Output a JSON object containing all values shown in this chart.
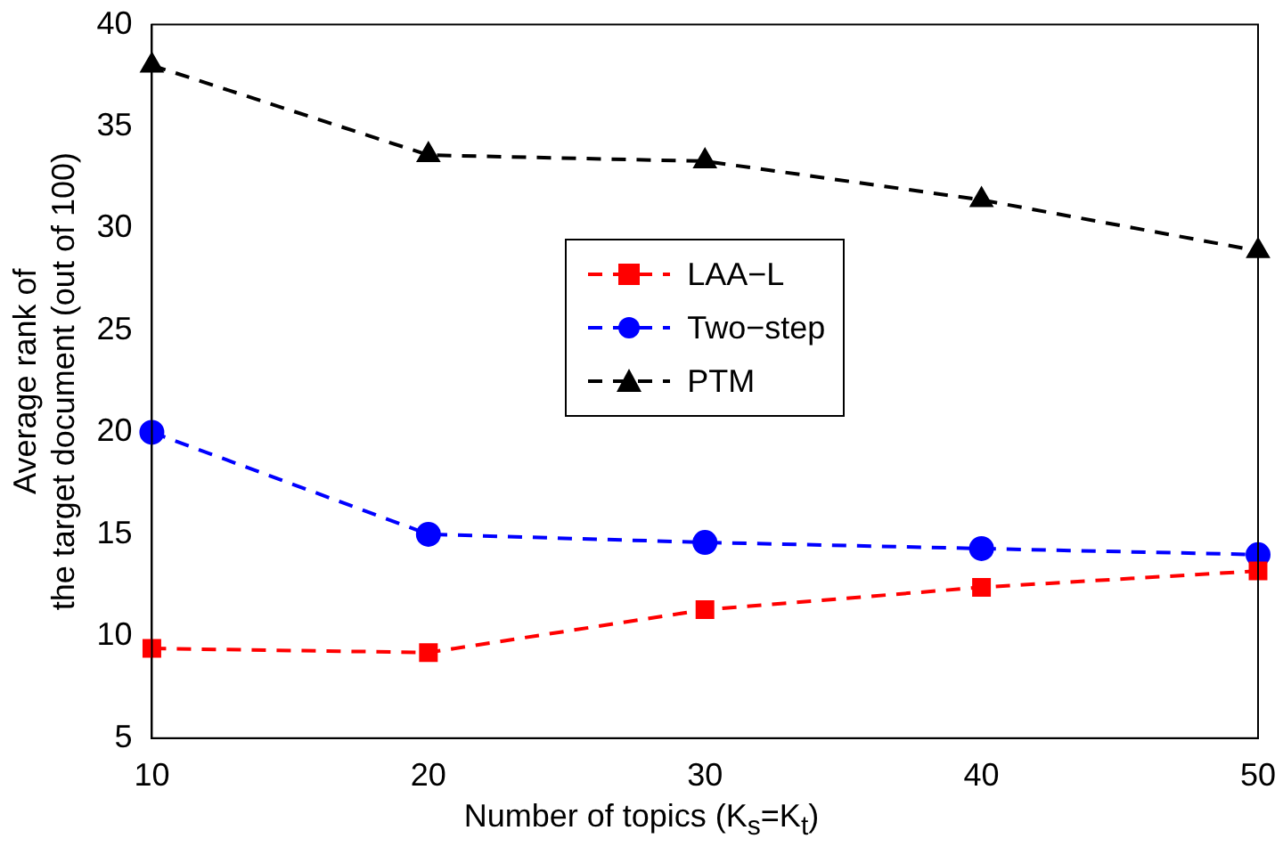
{
  "chart_data": {
    "type": "line",
    "xlabel": "Number of topics (K$_{s}$=K$_{t}$)",
    "ylabel": "Average rank of\nthe target document (out of 100)",
    "x": [
      10,
      20,
      30,
      40,
      50
    ],
    "xlim": [
      10,
      50
    ],
    "xticks": [
      10,
      20,
      30,
      40,
      50
    ],
    "ylim": [
      5,
      40
    ],
    "yticks": [
      5,
      10,
      15,
      20,
      25,
      30,
      35,
      40
    ],
    "grid": false,
    "legend": "center",
    "line_style": "dashed",
    "series": [
      {
        "name": "LAA−L",
        "color": "#ff0000",
        "marker": "square",
        "values": [
          9.4,
          9.2,
          11.3,
          12.4,
          13.2
        ]
      },
      {
        "name": "Two−step",
        "color": "#0000ff",
        "marker": "circle",
        "values": [
          20.0,
          15.0,
          14.6,
          14.3,
          14.0
        ]
      },
      {
        "name": "PTM",
        "color": "#000000",
        "marker": "triangle",
        "values": [
          38.0,
          33.6,
          33.3,
          31.4,
          28.9
        ]
      }
    ]
  }
}
